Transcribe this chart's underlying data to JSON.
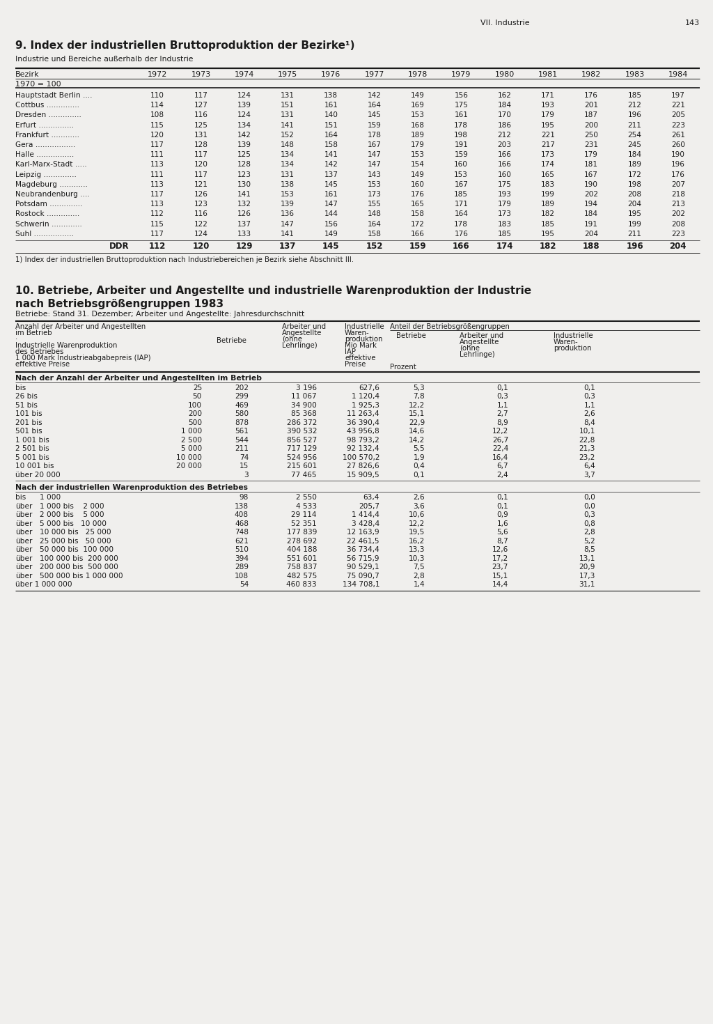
{
  "page_header_right": "VII. Industrie",
  "page_number": "143",
  "section1_title": "9. Index der industriellen Bruttoproduktion der Bezirke¹)",
  "section1_subtitle": "Industrie und Bereiche außerhalb der Industrie",
  "table1_col_header": "Bezirk",
  "table1_years": [
    "1972",
    "1973",
    "1974",
    "1975",
    "1976",
    "1977",
    "1978",
    "1979",
    "1980",
    "1981",
    "1982",
    "1983",
    "1984"
  ],
  "table1_base": "1970 = 100",
  "table1_rows": [
    [
      "Hauptstadt Berlin ....",
      "110",
      "117",
      "124",
      "131",
      "138",
      "142",
      "149",
      "156",
      "162",
      "171",
      "176",
      "185",
      "197"
    ],
    [
      "Cottbus ..............",
      "114",
      "127",
      "139",
      "151",
      "161",
      "164",
      "169",
      "175",
      "184",
      "193",
      "201",
      "212",
      "221"
    ],
    [
      "Dresden ..............",
      "108",
      "116",
      "124",
      "131",
      "140",
      "145",
      "153",
      "161",
      "170",
      "179",
      "187",
      "196",
      "205"
    ],
    [
      "Erfurt ...............",
      "115",
      "125",
      "134",
      "141",
      "151",
      "159",
      "168",
      "178",
      "186",
      "195",
      "200",
      "211",
      "223"
    ],
    [
      "Frankfurt ............",
      "120",
      "131",
      "142",
      "152",
      "164",
      "178",
      "189",
      "198",
      "212",
      "221",
      "250",
      "254",
      "261"
    ],
    [
      "Gera .................",
      "117",
      "128",
      "139",
      "148",
      "158",
      "167",
      "179",
      "191",
      "203",
      "217",
      "231",
      "245",
      "260"
    ],
    [
      "Halle ................",
      "111",
      "117",
      "125",
      "134",
      "141",
      "147",
      "153",
      "159",
      "166",
      "173",
      "179",
      "184",
      "190"
    ],
    [
      "Karl-Marx-Stadt .....",
      "113",
      "120",
      "128",
      "134",
      "142",
      "147",
      "154",
      "160",
      "166",
      "174",
      "181",
      "189",
      "196"
    ],
    [
      "Leipzig ..............",
      "111",
      "117",
      "123",
      "131",
      "137",
      "143",
      "149",
      "153",
      "160",
      "165",
      "167",
      "172",
      "176"
    ],
    [
      "Magdeburg ............",
      "113",
      "121",
      "130",
      "138",
      "145",
      "153",
      "160",
      "167",
      "175",
      "183",
      "190",
      "198",
      "207"
    ],
    [
      "Neubrandenburg ....",
      "117",
      "126",
      "141",
      "153",
      "161",
      "173",
      "176",
      "185",
      "193",
      "199",
      "202",
      "208",
      "218"
    ],
    [
      "Potsdam ..............",
      "113",
      "123",
      "132",
      "139",
      "147",
      "155",
      "165",
      "171",
      "179",
      "189",
      "194",
      "204",
      "213"
    ],
    [
      "Rostock ..............",
      "112",
      "116",
      "126",
      "136",
      "144",
      "148",
      "158",
      "164",
      "173",
      "182",
      "184",
      "195",
      "202"
    ],
    [
      "Schwerin .............",
      "115",
      "122",
      "137",
      "147",
      "156",
      "164",
      "172",
      "178",
      "183",
      "185",
      "191",
      "199",
      "208"
    ],
    [
      "Suhl .................",
      "117",
      "124",
      "133",
      "141",
      "149",
      "158",
      "166",
      "176",
      "185",
      "195",
      "204",
      "211",
      "223"
    ]
  ],
  "table1_ddr_row": [
    "DDR",
    "112",
    "120",
    "129",
    "137",
    "145",
    "152",
    "159",
    "166",
    "174",
    "182",
    "188",
    "196",
    "204"
  ],
  "table1_footnote": "1) Index der industriellen Bruttoproduktion nach Industriebereichen je Bezirk siehe Abschnitt III.",
  "section2_title_line1": "10. Betriebe, Arbeiter und Angestellte und industrielle Warenproduktion der Industrie",
  "section2_title_line2": "nach Betriebsgrößengruppen 1983",
  "section2_subtitle": "Betriebe: Stand 31. Dezember; Arbeiter und Angestellte: Jahresdurchschnitt",
  "table2_header_col1_lines": [
    "Anzahl der Arbeiter und Angestellten",
    "im Betrieb",
    "·",
    "Industrielle Warenproduktion",
    "des Betriebes",
    "1 000 Mark Industrieabgabepreis (IAP)",
    "effektive Preise"
  ],
  "table2_header_col2": "Betriebe",
  "table2_header_col3_lines": [
    "Arbeiter und",
    "Angestellte",
    "(ohne",
    "Lehrlinge)"
  ],
  "table2_header_col4_lines": [
    "Industrielle",
    "Waren-",
    "produktion",
    "Mio Mark",
    "IAP",
    "effektive",
    "Preise"
  ],
  "table2_header_anteil": "Anteil der Betriebsgrößengruppen",
  "table2_header_col5": "Betriebe",
  "table2_header_col6_lines": [
    "Arbeiter und",
    "Angestellte",
    "(ohne",
    "Lehrlinge)"
  ],
  "table2_header_col7_lines": [
    "Industrielle",
    "Waren-",
    "produktion"
  ],
  "table2_header_prozent": "Prozent",
  "table2_section1_title": "Nach der Anzahl der Arbeiter und Angestellten im Betrieb",
  "table2_section1_rows": [
    [
      "bis",
      "25",
      "202",
      "3 196",
      "627,6",
      "5,3",
      "0,1",
      "0,1"
    ],
    [
      "26 bis",
      "50",
      "299",
      "11 067",
      "1 120,4",
      "7,8",
      "0,3",
      "0,3"
    ],
    [
      "51 bis",
      "100",
      "469",
      "34 900",
      "1 925,3",
      "12,2",
      "1,1",
      "1,1"
    ],
    [
      "101 bis",
      "200",
      "580",
      "85 368",
      "11 263,4",
      "15,1",
      "2,7",
      "2,6"
    ],
    [
      "201 bis",
      "500",
      "878",
      "286 372",
      "36 390,4",
      "22,9",
      "8,9",
      "8,4"
    ],
    [
      "501 bis",
      "1 000",
      "561",
      "390 532",
      "43 956,8",
      "14,6",
      "12,2",
      "10,1"
    ],
    [
      "1 001 bis",
      "2 500",
      "544",
      "856 527",
      "98 793,2",
      "14,2",
      "26,7",
      "22,8"
    ],
    [
      "2 501 bis",
      "5 000",
      "211",
      "717 129",
      "92 132,4",
      "5,5",
      "22,4",
      "21,3"
    ],
    [
      "5 001 bis",
      "10 000",
      "74",
      "524 956",
      "100 570,2",
      "1,9",
      "16,4",
      "23,2"
    ],
    [
      "10 001 bis",
      "20 000",
      "15",
      "215 601",
      "27 826,6",
      "0,4",
      "6,7",
      "6,4"
    ],
    [
      "über 20 000",
      "",
      "3",
      "77 465",
      "15 909,5",
      "0,1",
      "2,4",
      "3,7"
    ]
  ],
  "table2_section2_title": "Nach der industriellen Warenproduktion des Betriebes",
  "table2_section2_rows": [
    [
      "bis",
      "1 000",
      "98",
      "2 550",
      "63,4",
      "2,6",
      "0,1",
      "0,0"
    ],
    [
      "über",
      "1 000 bis    2 000",
      "138",
      "4 533",
      "205,7",
      "3,6",
      "0,1",
      "0,0"
    ],
    [
      "über",
      "2 000 bis    5 000",
      "408",
      "29 114",
      "1 414,4",
      "10,6",
      "0,9",
      "0,3"
    ],
    [
      "über",
      "5 000 bis   10 000",
      "468",
      "52 351",
      "3 428,4",
      "12,2",
      "1,6",
      "0,8"
    ],
    [
      "über",
      "10 000 bis   25 000",
      "748",
      "177 839",
      "12 163,9",
      "19,5",
      "5,6",
      "2,8"
    ],
    [
      "über",
      "25 000 bis   50 000",
      "621",
      "278 692",
      "22 461,5",
      "16,2",
      "8,7",
      "5,2"
    ],
    [
      "über",
      "50 000 bis  100 000",
      "510",
      "404 188",
      "36 734,4",
      "13,3",
      "12,6",
      "8,5"
    ],
    [
      "über",
      "100 000 bis  200 000",
      "394",
      "551 601",
      "56 715,9",
      "10,3",
      "17,2",
      "13,1"
    ],
    [
      "über",
      "200 000 bis  500 000",
      "289",
      "758 837",
      "90 529,1",
      "7,5",
      "23,7",
      "20,9"
    ],
    [
      "über",
      "500 000 bis 1 000 000",
      "108",
      "482 575",
      "75 090,7",
      "2,8",
      "15,1",
      "17,3"
    ],
    [
      "über 1 000 000",
      "",
      "54",
      "460 833",
      "134 708,1",
      "1,4",
      "14,4",
      "31,1"
    ]
  ],
  "bg_color": "#f0efed",
  "text_color": "#1a1a1a"
}
